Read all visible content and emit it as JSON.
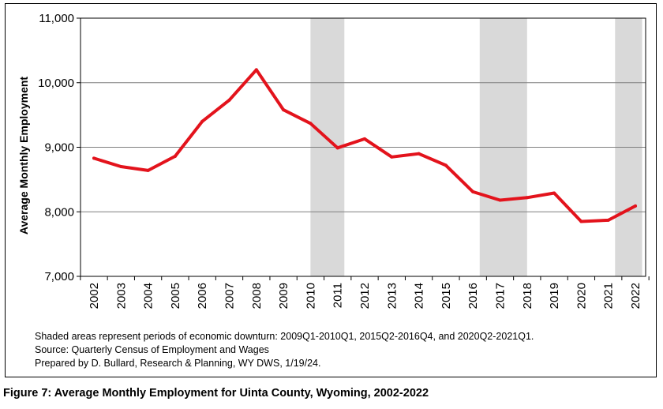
{
  "chart_data": {
    "type": "line",
    "ylabel": "Average Monthly Employment",
    "ylim": [
      7000,
      11000
    ],
    "yticks": [
      "7,000",
      "8,000",
      "9,000",
      "10,000",
      "11,000"
    ],
    "ytick_values": [
      7000,
      8000,
      9000,
      10000,
      11000
    ],
    "x": [
      "2002",
      "2003",
      "2004",
      "2005",
      "2006",
      "2007",
      "2008",
      "2009",
      "2010",
      "2011",
      "2012",
      "2013",
      "2014",
      "2015",
      "2016",
      "2017",
      "2018",
      "2019",
      "2020",
      "2021",
      "2022"
    ],
    "series": [
      {
        "values": [
          8830,
          8700,
          8640,
          8860,
          9400,
          9730,
          10200,
          9580,
          9370,
          8990,
          9130,
          8850,
          8900,
          8720,
          8310,
          8180,
          8220,
          8290,
          7850,
          7870,
          8090
        ]
      }
    ],
    "shaded_periods": [
      {
        "start": "2009Q1",
        "end": "2010Q1",
        "x0": 8.0,
        "x1": 9.25
      },
      {
        "start": "2015Q2",
        "end": "2016Q4",
        "x0": 14.25,
        "x1": 16.0
      },
      {
        "start": "2020Q2",
        "end": "2021Q1",
        "x0": 19.25,
        "x1": 20.25
      }
    ],
    "grid": "horizontal",
    "line_color": "#e3131c",
    "shade_color": "#d9d9d9"
  },
  "notes": [
    "Shaded areas represent periods of economic downturn: 2009Q1-2010Q1, 2015Q2-2016Q4, and 2020Q2-2021Q1.",
    "Source: Quarterly Census of Employment and Wages",
    "Prepared by D. Bullard, Research & Planning, WY DWS, 1/19/24."
  ],
  "caption": "Figure 7: Average Monthly Employment for Uinta County, Wyoming, 2002-2022"
}
